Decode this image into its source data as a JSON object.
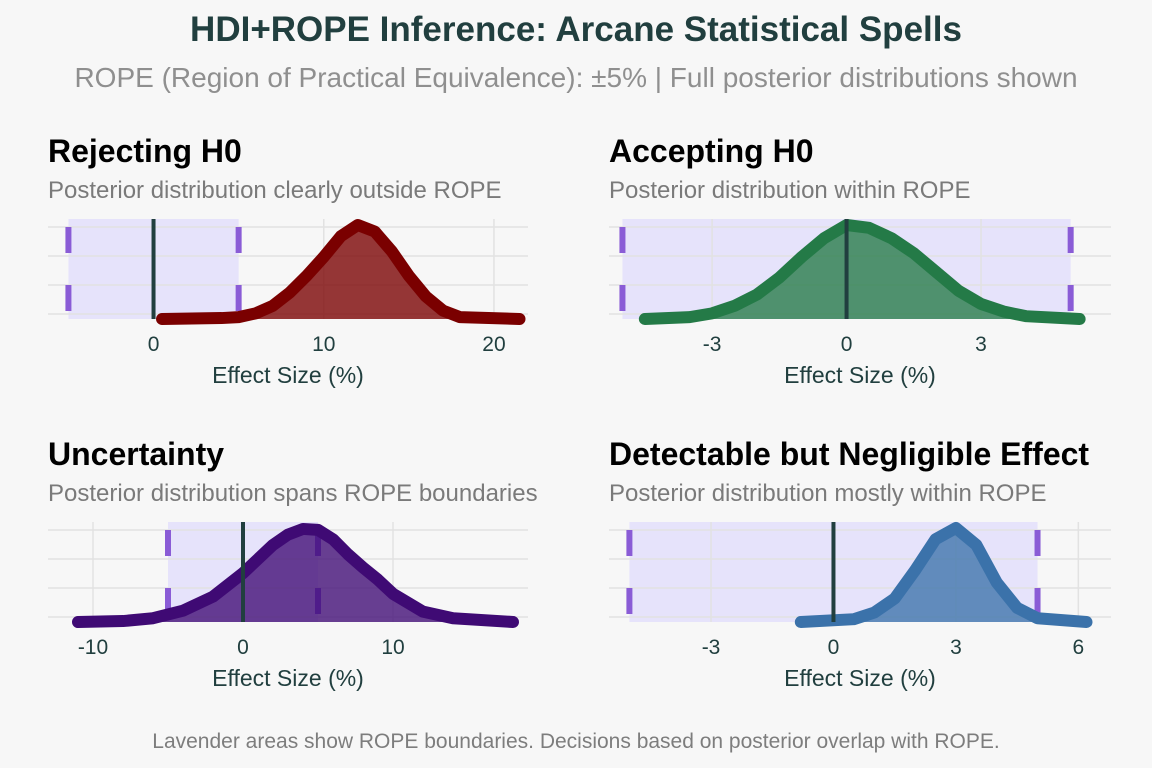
{
  "title": "HDI+ROPE Inference: Arcane Statistical Spells",
  "subtitle": "ROPE (Region of Practical Equivalence): ±5% | Full posterior distributions shown",
  "caption": "Lavender areas show ROPE boundaries. Decisions based on posterior overlap with ROPE.",
  "colors": {
    "rope_fill": "#e6e3fb",
    "hdi_marker": "#8a5cd6",
    "zero_line": "#213f3f",
    "grid": "#e2e2e2"
  },
  "chart_data": [
    {
      "type": "area",
      "title": "Rejecting H0",
      "subtitle": "Posterior distribution clearly outside ROPE",
      "xlabel": "Effect Size (%)",
      "color": "#7a0000",
      "rope": [
        -5,
        5
      ],
      "hdi_markers": [
        -5,
        5
      ],
      "xlim": [
        -6.2,
        22
      ],
      "xticks": [
        0,
        10,
        20
      ],
      "xtick_labels": [
        "0",
        "10",
        "20"
      ],
      "x": [
        0.5,
        4,
        5,
        6,
        7,
        8,
        9,
        10,
        11,
        12,
        13,
        14,
        15,
        16,
        17,
        18,
        21.5
      ],
      "density": [
        0,
        0.01,
        0.02,
        0.06,
        0.14,
        0.28,
        0.46,
        0.66,
        0.88,
        1.0,
        0.93,
        0.72,
        0.46,
        0.24,
        0.09,
        0.02,
        0
      ]
    },
    {
      "type": "area",
      "title": "Accepting H0",
      "subtitle": "Posterior distribution within ROPE",
      "xlabel": "Effect Size (%)",
      "color": "#247a47",
      "rope": [
        -5,
        5
      ],
      "hdi_markers": [
        -5,
        5
      ],
      "xlim": [
        -5.3,
        5.9
      ],
      "xticks": [
        -3,
        0,
        3
      ],
      "xtick_labels": [
        "-3",
        "0",
        "3"
      ],
      "x": [
        -4.5,
        -3.5,
        -3,
        -2.5,
        -2,
        -1.5,
        -1,
        -0.5,
        0,
        0.5,
        1,
        1.5,
        2,
        2.5,
        3,
        3.5,
        4,
        5.2
      ],
      "density": [
        0,
        0.02,
        0.06,
        0.14,
        0.26,
        0.44,
        0.66,
        0.86,
        1.0,
        0.97,
        0.86,
        0.7,
        0.5,
        0.3,
        0.16,
        0.08,
        0.03,
        0
      ]
    },
    {
      "type": "area",
      "title": "Uncertainty",
      "subtitle": "Posterior distribution spans ROPE boundaries",
      "xlabel": "Effect Size (%)",
      "color": "#3f0a74",
      "rope": [
        -5,
        5
      ],
      "hdi_markers": [
        -5,
        5
      ],
      "xlim": [
        -13,
        19
      ],
      "xticks": [
        -10,
        0,
        10
      ],
      "xtick_labels": [
        "-10",
        "0",
        "10"
      ],
      "x": [
        -11,
        -8,
        -6,
        -4,
        -2,
        0,
        2,
        3,
        4,
        5,
        6,
        7,
        8,
        9,
        10,
        12,
        14,
        18
      ],
      "density": [
        0,
        0.01,
        0.04,
        0.12,
        0.27,
        0.52,
        0.82,
        0.93,
        0.99,
        0.98,
        0.88,
        0.72,
        0.58,
        0.45,
        0.3,
        0.11,
        0.04,
        0
      ]
    },
    {
      "type": "area",
      "title": "Detectable but Negligible Effect",
      "subtitle": "Posterior distribution mostly within ROPE",
      "xlabel": "Effect Size (%)",
      "color": "#3b72aa",
      "rope": [
        -5,
        5
      ],
      "hdi_markers": [
        -5,
        5
      ],
      "xlim": [
        -5.5,
        6.8
      ],
      "xticks": [
        -3,
        0,
        3,
        6
      ],
      "xtick_labels": [
        "-3",
        "0",
        "3",
        "6"
      ],
      "x": [
        -0.8,
        0.5,
        1,
        1.5,
        2,
        2.5,
        3,
        3.5,
        4,
        4.5,
        5,
        6.2
      ],
      "density": [
        0,
        0.03,
        0.1,
        0.25,
        0.55,
        0.88,
        1.0,
        0.82,
        0.42,
        0.15,
        0.04,
        0
      ]
    }
  ]
}
